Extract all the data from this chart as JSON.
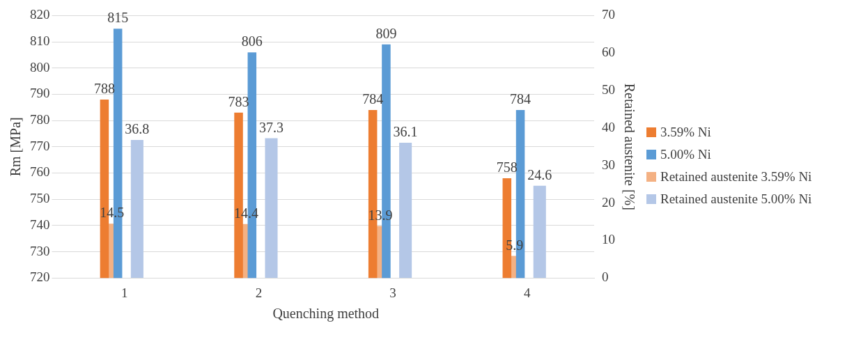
{
  "chart_data": {
    "type": "bar",
    "xlabel": "Quenching method",
    "ylabel": "Rm [MPa]",
    "y2label": "Retained austenite [%]",
    "categories": [
      "1",
      "2",
      "3",
      "4"
    ],
    "series": [
      {
        "name": "3.59% Ni",
        "color": "#ed7d31",
        "values": [
          788,
          783,
          784,
          758
        ]
      },
      {
        "name": "5.00% Ni",
        "color": "#5b9bd5",
        "values": [
          815,
          806,
          809,
          784
        ]
      },
      {
        "name": "Retained austenite 3.59% Ni",
        "color": "#f4b183",
        "values": [
          14.5,
          14.4,
          13.9,
          5.9
        ],
        "axis": "y2"
      },
      {
        "name": "Retained austenite 5.00% Ni",
        "color": "#b4c7e7",
        "values": [
          36.8,
          37.3,
          36.1,
          24.6
        ],
        "axis": "y2"
      }
    ],
    "ylim": [
      720,
      820
    ],
    "yticks": [
      720,
      730,
      740,
      750,
      760,
      770,
      780,
      790,
      800,
      810,
      820
    ],
    "y2lim": [
      0,
      70
    ],
    "y2ticks": [
      0,
      10,
      20,
      30,
      40,
      50,
      60,
      70
    ],
    "grid": "y",
    "legend": "right",
    "data_labels": true
  }
}
